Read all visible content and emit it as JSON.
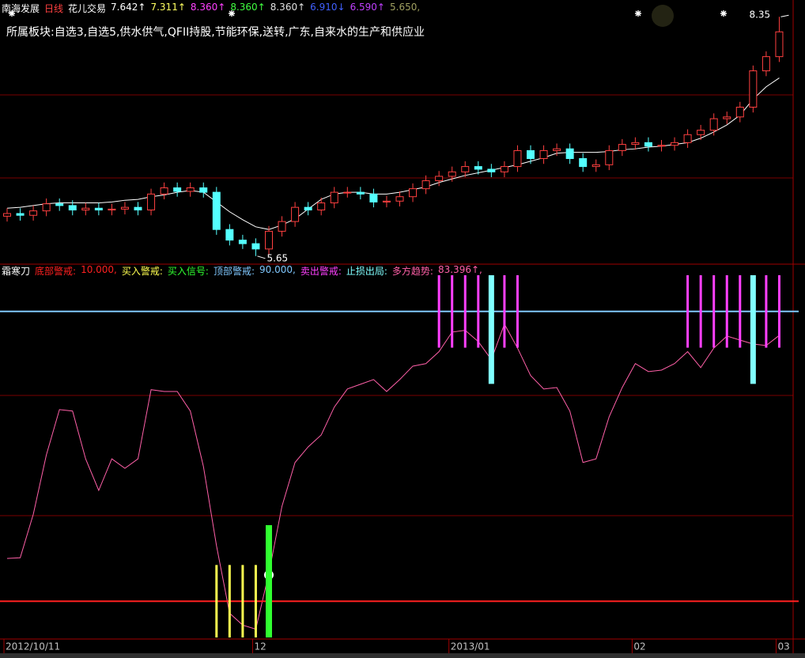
{
  "chart_data": [
    {
      "type": "candlestick",
      "title": "南海发展",
      "period": "日线",
      "indicator": "花儿交易",
      "header_values": [
        {
          "text": "7.642↑",
          "color": "#ffffff"
        },
        {
          "text": "7.311↑",
          "color": "#ffff60"
        },
        {
          "text": "8.360↑",
          "color": "#ff40ff"
        },
        {
          "text": "8.360↑",
          "color": "#40ff40"
        },
        {
          "text": "8.360↑",
          "color": "#e0e0e0"
        },
        {
          "text": "6.910↓",
          "color": "#4060ff"
        },
        {
          "text": "6.590↑",
          "color": "#c040ff"
        },
        {
          "text": "5.650,",
          "color": "#a0a060"
        }
      ],
      "subtitle": "所属板块:自选3,自选5,供水供气,QFII持股,节能环保,送转,广东,自来水的生产和供应业",
      "ylim": [
        5.55,
        8.45
      ],
      "up_color": "#ff4040",
      "down_color": "#54ffff",
      "open": [
        6.1,
        6.13,
        6.11,
        6.16,
        6.24,
        6.22,
        6.17,
        6.19,
        6.17,
        6.18,
        6.2,
        6.17,
        6.35,
        6.42,
        6.38,
        6.42,
        6.37,
        5.95,
        5.83,
        5.79,
        5.73,
        5.93,
        6.04,
        6.2,
        6.17,
        6.25,
        6.37,
        6.37,
        6.35,
        6.26,
        6.27,
        6.32,
        6.41,
        6.5,
        6.55,
        6.6,
        6.66,
        6.63,
        6.6,
        6.66,
        6.84,
        6.75,
        6.84,
        6.86,
        6.75,
        6.66,
        6.68,
        6.84,
        6.91,
        6.93,
        6.89,
        6.9,
        6.93,
        7.02,
        7.07,
        7.2,
        7.22,
        7.33,
        7.74,
        7.9
      ],
      "high": [
        6.19,
        6.19,
        6.22,
        6.3,
        6.3,
        6.28,
        6.25,
        6.25,
        6.24,
        6.26,
        6.26,
        6.41,
        6.48,
        6.48,
        6.48,
        6.48,
        6.43,
        6.01,
        5.89,
        5.85,
        5.99,
        6.1,
        6.26,
        6.26,
        6.31,
        6.43,
        6.43,
        6.43,
        6.41,
        6.33,
        6.38,
        6.47,
        6.56,
        6.61,
        6.66,
        6.72,
        6.72,
        6.69,
        6.72,
        6.9,
        6.9,
        6.9,
        6.92,
        6.92,
        6.81,
        6.74,
        6.9,
        6.97,
        6.99,
        6.99,
        6.96,
        6.99,
        7.08,
        7.13,
        7.26,
        7.28,
        7.39,
        7.8,
        7.96,
        8.35
      ],
      "low": [
        6.04,
        6.05,
        6.05,
        6.1,
        6.16,
        6.11,
        6.11,
        6.11,
        6.11,
        6.12,
        6.11,
        6.11,
        6.29,
        6.32,
        6.32,
        6.31,
        5.89,
        5.77,
        5.73,
        5.65,
        5.67,
        5.87,
        5.98,
        6.11,
        6.11,
        6.19,
        6.31,
        6.29,
        6.2,
        6.2,
        6.21,
        6.26,
        6.35,
        6.44,
        6.49,
        6.54,
        6.57,
        6.54,
        6.54,
        6.6,
        6.69,
        6.69,
        6.78,
        6.69,
        6.6,
        6.6,
        6.62,
        6.78,
        6.85,
        6.83,
        6.83,
        6.84,
        6.87,
        6.96,
        7.01,
        7.14,
        7.16,
        7.27,
        7.68,
        7.84
      ],
      "close": [
        6.13,
        6.11,
        6.16,
        6.24,
        6.22,
        6.17,
        6.19,
        6.17,
        6.18,
        6.2,
        6.17,
        6.35,
        6.42,
        6.38,
        6.42,
        6.37,
        5.95,
        5.83,
        5.79,
        5.73,
        5.93,
        6.04,
        6.2,
        6.17,
        6.25,
        6.37,
        6.37,
        6.35,
        6.26,
        6.27,
        6.32,
        6.41,
        6.5,
        6.55,
        6.6,
        6.66,
        6.63,
        6.6,
        6.66,
        6.84,
        6.75,
        6.84,
        6.86,
        6.75,
        6.66,
        6.68,
        6.84,
        6.91,
        6.93,
        6.89,
        6.9,
        6.93,
        7.02,
        7.07,
        7.2,
        7.22,
        7.33,
        7.74,
        7.9,
        8.18
      ],
      "lines": [
        {
          "color": "#ffffff",
          "values": [
            6.19,
            6.2,
            6.22,
            6.24,
            6.25,
            6.25,
            6.25,
            6.25,
            6.26,
            6.28,
            6.29,
            6.32,
            6.34,
            6.37,
            6.39,
            6.37,
            6.26,
            6.15,
            6.06,
            5.98,
            5.95,
            6.0,
            6.07,
            6.18,
            6.29,
            6.35,
            6.37,
            6.37,
            6.35,
            6.35,
            6.37,
            6.4,
            6.43,
            6.48,
            6.52,
            6.56,
            6.59,
            6.62,
            6.65,
            6.68,
            6.72,
            6.76,
            6.81,
            6.82,
            6.82,
            6.82,
            6.83,
            6.85,
            6.86,
            6.88,
            6.89,
            6.91,
            6.93,
            6.98,
            7.05,
            7.13,
            7.24,
            7.42,
            7.56,
            7.66
          ]
        }
      ],
      "annotations": [
        {
          "label": "8.35",
          "value": 8.35,
          "x": 59
        },
        {
          "label": "5.65",
          "value": 5.65,
          "x": 19
        }
      ]
    },
    {
      "type": "line",
      "title": "霜寒刀",
      "ylim": [
        0,
        100
      ],
      "categories": [
        "2012/10/11",
        null,
        null,
        null,
        null,
        null,
        null,
        null,
        null,
        null,
        null,
        null,
        null,
        null,
        null,
        null,
        null,
        null,
        null,
        "12",
        null,
        null,
        null,
        null,
        null,
        null,
        null,
        null,
        null,
        null,
        null,
        null,
        null,
        null,
        "2013/01",
        null,
        null,
        null,
        null,
        null,
        null,
        null,
        null,
        null,
        null,
        null,
        null,
        null,
        "02",
        null,
        null,
        null,
        null,
        null,
        null,
        null,
        null,
        null,
        null,
        "03"
      ],
      "series": [
        {
          "name": "底部警戒:",
          "type": "hline",
          "color": "#ff2020",
          "value": 10,
          "value_label": "10.000,"
        },
        {
          "name": "买入警戒:",
          "type": "signal",
          "color": "#ffff50",
          "base": 0,
          "values": [
            null,
            null,
            null,
            null,
            null,
            null,
            null,
            null,
            null,
            null,
            null,
            null,
            null,
            null,
            null,
            null,
            20,
            20,
            20,
            20,
            null,
            null,
            null,
            null,
            null,
            null,
            null,
            null,
            null,
            null,
            null,
            null,
            null,
            null,
            null,
            null,
            null,
            null,
            null,
            null,
            null,
            null,
            null,
            null,
            null,
            null,
            null,
            null,
            null,
            null,
            null,
            null,
            null,
            null,
            null,
            null,
            null,
            null,
            null,
            null
          ]
        },
        {
          "name": "买入信号:",
          "type": "signal",
          "color": "#30ff30",
          "base": 0,
          "values": [
            null,
            null,
            null,
            null,
            null,
            null,
            null,
            null,
            null,
            null,
            null,
            null,
            null,
            null,
            null,
            null,
            null,
            null,
            null,
            null,
            31,
            null,
            null,
            null,
            null,
            null,
            null,
            null,
            null,
            null,
            null,
            null,
            null,
            null,
            null,
            null,
            null,
            null,
            null,
            null,
            null,
            null,
            null,
            null,
            null,
            null,
            null,
            null,
            null,
            null,
            null,
            null,
            null,
            null,
            null,
            null,
            null,
            null,
            null,
            null
          ]
        },
        {
          "name": "顶部警戒:",
          "type": "hline",
          "color": "#80c8ff",
          "value": 90,
          "value_label": "90.000,"
        },
        {
          "name": "卖出警戒:",
          "type": "signal",
          "color": "#ff40ff",
          "base": 80,
          "values": [
            null,
            null,
            null,
            null,
            null,
            null,
            null,
            null,
            null,
            null,
            null,
            null,
            null,
            null,
            null,
            null,
            null,
            null,
            null,
            null,
            null,
            null,
            null,
            null,
            null,
            null,
            null,
            null,
            null,
            null,
            null,
            null,
            null,
            100,
            100,
            100,
            100,
            null,
            100,
            100,
            null,
            null,
            null,
            null,
            null,
            null,
            null,
            null,
            null,
            null,
            null,
            null,
            100,
            100,
            100,
            100,
            100,
            null,
            100,
            100
          ]
        },
        {
          "name": "止损出局:",
          "type": "signal",
          "color": "#80ffff",
          "base": 70,
          "values": [
            null,
            null,
            null,
            null,
            null,
            null,
            null,
            null,
            null,
            null,
            null,
            null,
            null,
            null,
            null,
            null,
            null,
            null,
            null,
            null,
            null,
            null,
            null,
            null,
            null,
            null,
            null,
            null,
            null,
            null,
            null,
            null,
            null,
            null,
            null,
            null,
            null,
            100,
            null,
            null,
            null,
            null,
            null,
            null,
            null,
            null,
            null,
            null,
            null,
            null,
            null,
            null,
            null,
            null,
            null,
            null,
            null,
            100,
            null,
            null
          ]
        },
        {
          "name": "多方趋势:",
          "type": "line",
          "color": "#ff60a8",
          "value_label": "83.396↑,",
          "values": [
            21.8,
            22.0,
            34.0,
            50.4,
            62.9,
            62.5,
            49.3,
            40.6,
            49.3,
            46.7,
            49.3,
            68.4,
            67.9,
            67.9,
            62.5,
            47.2,
            25.3,
            6.7,
            3.4,
            2.3,
            17.7,
            36.2,
            48.3,
            52.6,
            55.9,
            63.6,
            68.6,
            69.9,
            71.2,
            67.9,
            71.2,
            74.9,
            75.6,
            78.9,
            84.3,
            84.8,
            81.7,
            76.7,
            86.5,
            79.9,
            72.3,
            68.6,
            69.0,
            62.5,
            48.3,
            49.3,
            60.9,
            69.0,
            75.6,
            73.4,
            73.8,
            75.6,
            78.9,
            74.5,
            79.9,
            83.2,
            82.1,
            81.0,
            80.6,
            83.396
          ]
        }
      ]
    }
  ]
}
